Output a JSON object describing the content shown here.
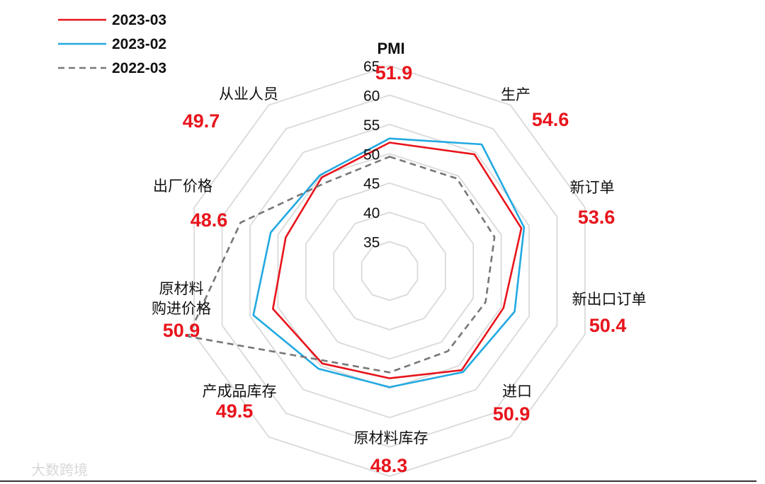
{
  "chart_data": {
    "type": "radar",
    "axes": [
      "PMI",
      "生产",
      "新订单",
      "新出口订单",
      "进口",
      "原材料库存",
      "产成品库存",
      "原材料\n购进价格",
      "出厂价格",
      "从业人员"
    ],
    "axis_values": [
      "51.9",
      "54.6",
      "53.6",
      "50.4",
      "50.9",
      "48.3",
      "49.5",
      "50.9",
      "48.6",
      "49.7"
    ],
    "ticks": [
      35,
      40,
      45,
      50,
      55,
      60,
      65
    ],
    "rmin": 30,
    "rmax": 65,
    "series": [
      {
        "name": "2023-03",
        "values": [
          51.9,
          54.6,
          53.6,
          50.4,
          50.9,
          48.3,
          49.5,
          50.9,
          48.6,
          49.7
        ]
      },
      {
        "name": "2023-02",
        "values": [
          52.6,
          56.7,
          54.1,
          52.4,
          51.3,
          49.8,
          50.6,
          54.4,
          51.3,
          50.2
        ]
      },
      {
        "name": "2022-03",
        "values": [
          49.5,
          49.5,
          48.8,
          47.2,
          46.9,
          47.3,
          48.9,
          66.1,
          56.7,
          48.6
        ]
      }
    ],
    "legend_position": "top-left",
    "grid": true
  },
  "colors": {
    "series": [
      "#e8141c",
      "#22a9e1",
      "#777777"
    ],
    "grid": "#d9d9d9",
    "value_text": "#e8141c",
    "footer_rule": "#333333"
  },
  "watermark": "大数跨境"
}
